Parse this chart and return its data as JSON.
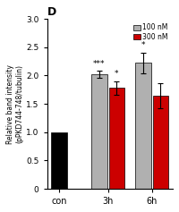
{
  "title": "D",
  "ylabel": "Relative band intensity\n(pPKD744-748/tubulin)",
  "xlabel_groups": [
    "con",
    "3h",
    "6h"
  ],
  "bar_heights": [
    1.0,
    2.02,
    1.78,
    2.22,
    1.65
  ],
  "bar_errors": [
    0.0,
    0.06,
    0.12,
    0.18,
    0.22
  ],
  "bar_colors": [
    "#000000",
    "#b0b0b0",
    "#cc0000",
    "#b0b0b0",
    "#cc0000"
  ],
  "ylim": [
    0,
    3.0
  ],
  "yticks": [
    0.0,
    0.5,
    1.0,
    1.5,
    2.0,
    2.5,
    3.0
  ],
  "legend_labels": [
    "100 nM",
    "300 nM"
  ],
  "legend_colors": [
    "#b0b0b0",
    "#cc0000"
  ],
  "sig_labels": [
    "",
    "***",
    "*",
    "*",
    ""
  ],
  "background_color": "#ffffff"
}
